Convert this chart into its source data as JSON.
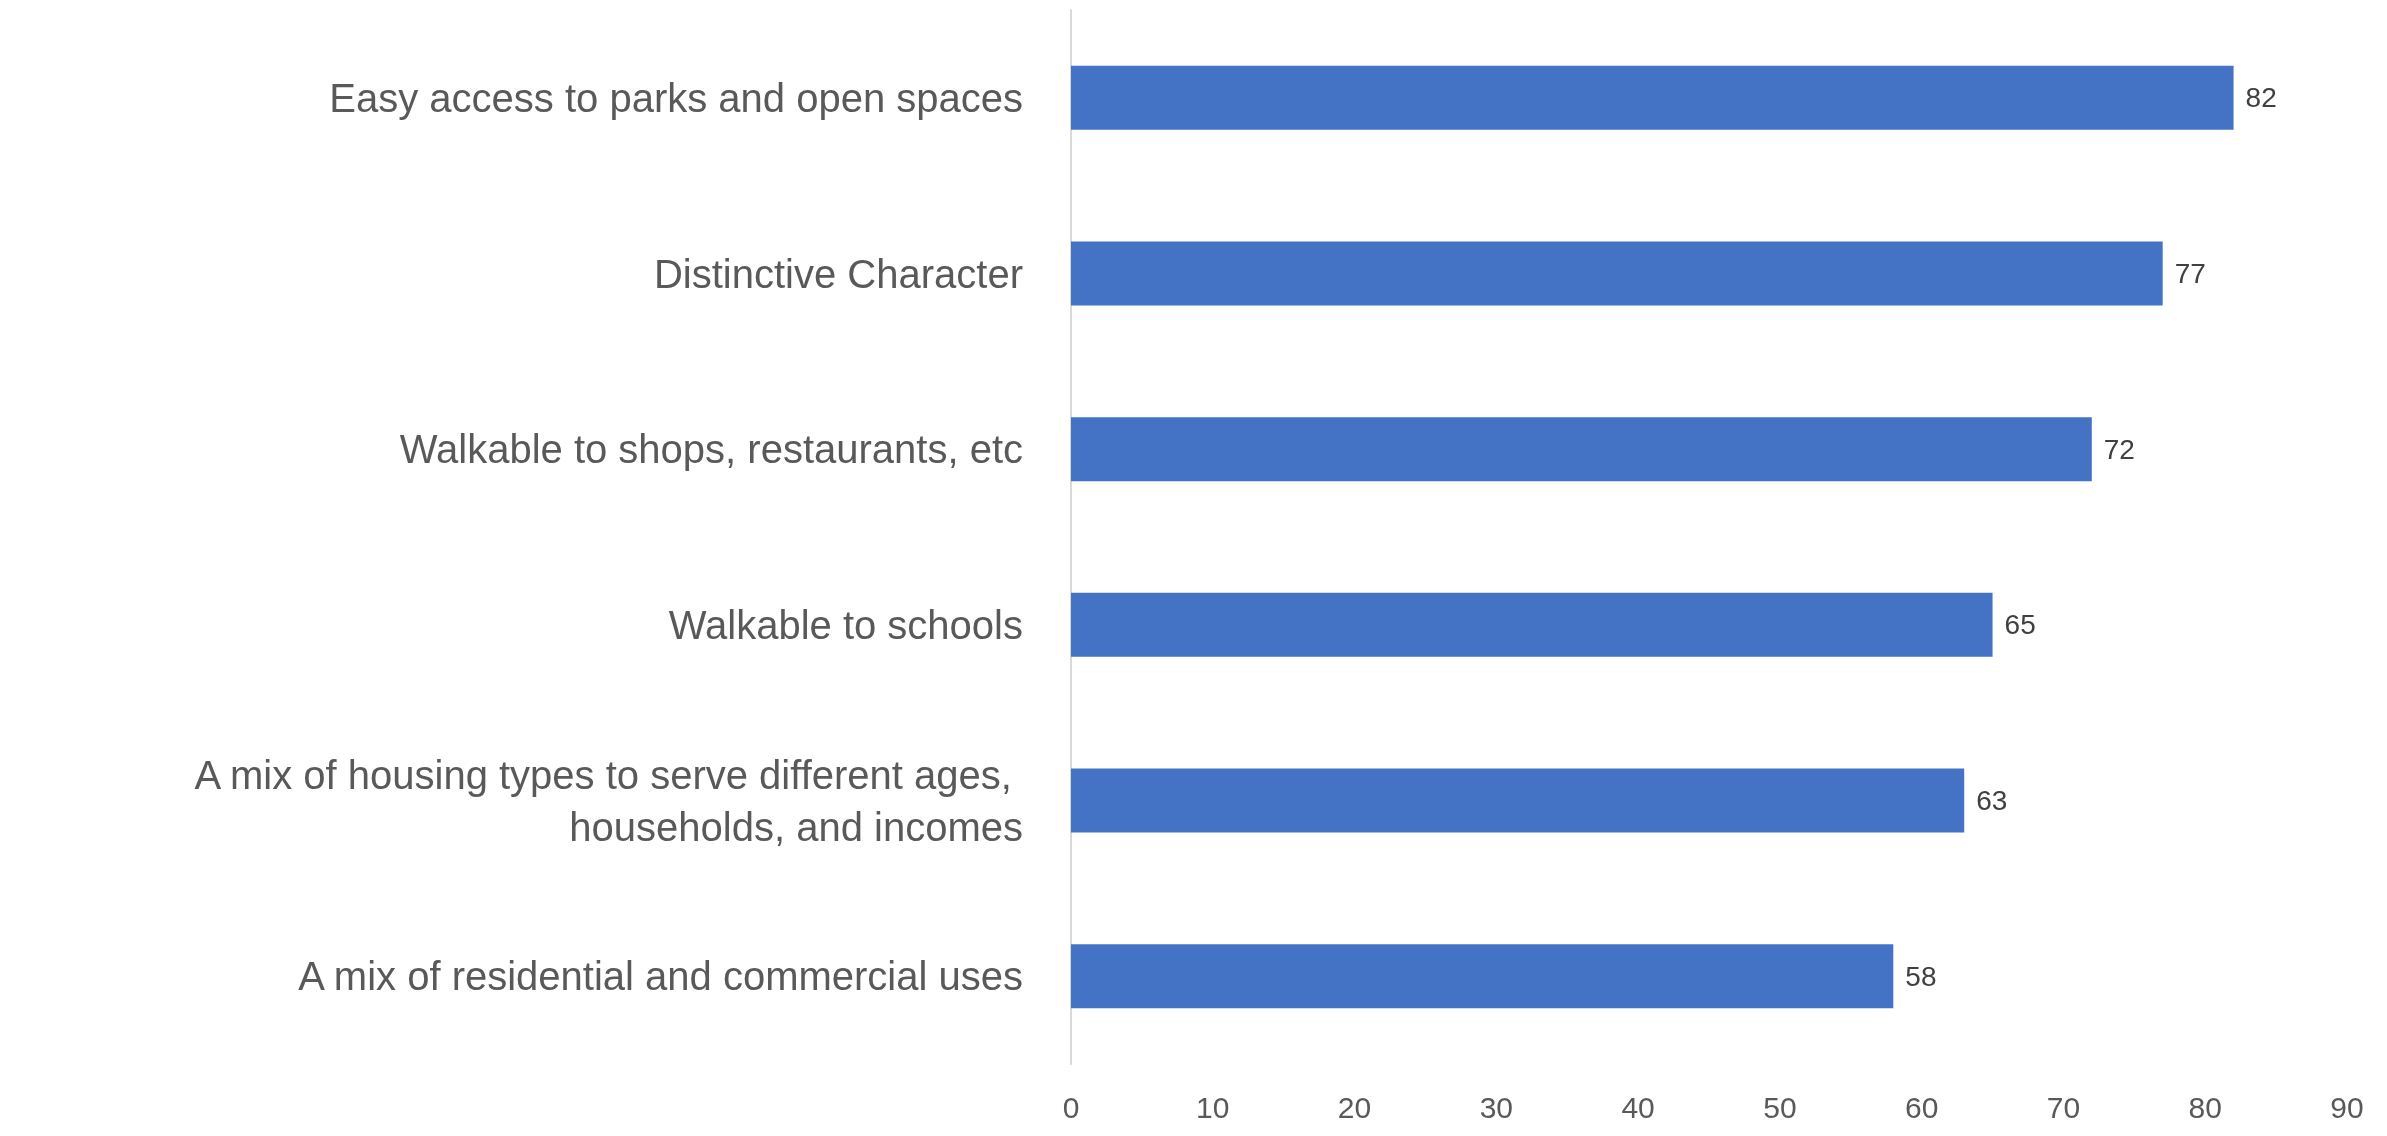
{
  "chart_data": {
    "type": "bar",
    "orientation": "horizontal",
    "categories": [
      "Easy access to parks and open spaces",
      "Distinctive Character",
      "Walkable to shops, restaurants, etc",
      "Walkable to schools",
      "A mix of housing types to serve different ages, households, and incomes",
      "A mix of residential and commercial uses"
    ],
    "values": [
      82,
      77,
      72,
      65,
      63,
      58
    ],
    "color": "#4472c4",
    "xlim": [
      0,
      90
    ],
    "xticks": [
      0,
      10,
      20,
      30,
      40,
      50,
      60,
      70,
      80,
      90
    ],
    "grid": false,
    "data_labels": true
  }
}
